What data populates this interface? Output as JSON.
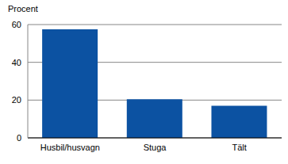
{
  "chart_data": {
    "type": "bar",
    "ylabel": "Procent",
    "categories": [
      "Husbil/husvagn",
      "Stuga",
      "Tält"
    ],
    "values": [
      57.5,
      20.5,
      17
    ],
    "color": "#0c52a2",
    "ylim": [
      0,
      60
    ],
    "yticks": [
      0,
      20,
      40,
      60
    ],
    "grid": true
  }
}
